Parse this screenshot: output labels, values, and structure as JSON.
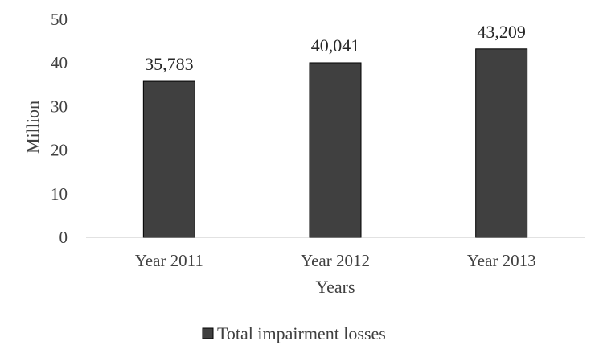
{
  "chart_data": {
    "type": "bar",
    "categories": [
      "Year 2011",
      "Year 2012",
      "Year 2013"
    ],
    "series": [
      {
        "name": "Total impairment losses",
        "values": [
          35.783,
          40.041,
          43.209
        ],
        "data_labels": [
          "35,783",
          "40,041",
          "43,209"
        ],
        "color": "#404040"
      }
    ],
    "xlabel": "Years",
    "ylabel": "Million",
    "ylim": [
      0,
      50
    ],
    "yticks": [
      0,
      10,
      20,
      30,
      40,
      50
    ],
    "grid": false,
    "legend_position": "bottom"
  }
}
